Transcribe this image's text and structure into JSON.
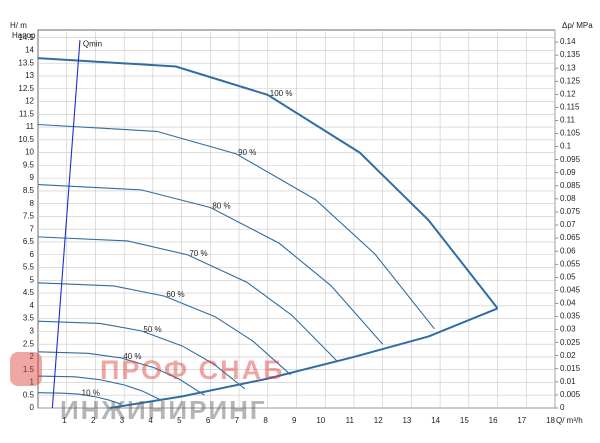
{
  "chart_data": {
    "type": "line",
    "y_label": "H/ m",
    "y_sublabel": "Напор",
    "y2_label": "Δp/ MPa",
    "x_label": "Q/ m³/h",
    "annotations": [
      "ПРОФ СНАБ",
      "ИНЖИНИРИНГ"
    ],
    "grid": true,
    "xlim": [
      0,
      18
    ],
    "xticks": [
      1,
      2,
      3,
      4,
      5,
      6,
      7,
      8,
      9,
      10,
      11,
      12,
      13,
      14,
      15,
      16,
      17,
      18
    ],
    "ylim": [
      0,
      14.8
    ],
    "yticks": [
      0,
      0.5,
      1,
      1.5,
      2,
      2.5,
      3,
      3.5,
      4,
      4.5,
      5,
      5.5,
      6,
      6.5,
      7,
      7.5,
      8,
      8.5,
      9,
      9.5,
      10,
      10.5,
      11,
      11.5,
      12,
      12.5,
      13,
      13.5,
      14,
      14.5
    ],
    "y2lim": [
      0,
      0.1446
    ],
    "y2ticks": [
      0,
      0.005,
      0.01,
      0.015,
      0.02,
      0.025,
      0.03,
      0.035,
      0.04,
      0.045,
      0.05,
      0.055,
      0.06,
      0.065,
      0.07,
      0.075,
      0.08,
      0.085,
      0.09,
      0.095,
      0.1,
      0.105,
      0.11,
      0.115,
      0.12,
      0.125,
      0.13,
      0.135,
      0.14
    ],
    "series": [
      {
        "name": "100 %",
        "color": "#2f6da3",
        "x": [
          0,
          4.8,
          8,
          11.2,
          13.6,
          16
        ],
        "values": [
          13.7,
          13.37,
          12.26,
          10.0,
          7.35,
          3.9
        ]
      },
      {
        "name": "90 %",
        "color": "#2f6da3",
        "x": [
          0,
          4.14,
          6.9,
          9.66,
          11.73,
          13.8
        ],
        "values": [
          11.1,
          10.83,
          9.95,
          8.16,
          6.03,
          3.1
        ]
      },
      {
        "name": "80 %",
        "color": "#2f6da3",
        "x": [
          0,
          3.6,
          6,
          8.4,
          10.2,
          12
        ],
        "values": [
          8.75,
          8.54,
          7.85,
          6.45,
          4.79,
          2.5
        ]
      },
      {
        "name": "70 %",
        "color": "#2f6da3",
        "x": [
          0,
          3.12,
          5.2,
          7.28,
          8.84,
          10.4
        ],
        "values": [
          6.7,
          6.54,
          6.0,
          4.92,
          3.63,
          1.85
        ]
      },
      {
        "name": "60 %",
        "color": "#2f6da3",
        "x": [
          0,
          2.64,
          4.4,
          6.16,
          7.48,
          8.8
        ],
        "values": [
          4.9,
          4.78,
          4.38,
          3.58,
          2.62,
          1.3
        ]
      },
      {
        "name": "50 %",
        "color": "#2f6da3",
        "x": [
          0,
          2.16,
          3.6,
          5.04,
          6.12,
          7.2
        ],
        "values": [
          3.4,
          3.31,
          3.02,
          2.42,
          1.72,
          0.75
        ]
      },
      {
        "name": "40 %",
        "color": "#2f6da3",
        "x": [
          0,
          1.74,
          2.9,
          4.06,
          4.93,
          5.8
        ],
        "values": [
          2.2,
          2.14,
          1.96,
          1.57,
          1.12,
          0.5
        ]
      },
      {
        "color": "#2f6da3",
        "x": [
          0,
          1.29,
          2.15,
          3.01,
          3.66,
          4.3
        ],
        "values": [
          1.25,
          1.22,
          1.11,
          0.9,
          0.65,
          0.3
        ]
      },
      {
        "name": "10 %",
        "color": "#2f6da3",
        "x": [
          0,
          0.87,
          1.45,
          2.03,
          2.47,
          2.9
        ],
        "values": [
          0.6,
          0.58,
          0.54,
          0.43,
          0.31,
          0.15
        ]
      },
      {
        "color": "#2f6da3",
        "x": [
          2.5,
          5,
          8,
          11,
          13.6,
          16
        ],
        "values": [
          0,
          0.45,
          1.15,
          2.0,
          2.8,
          3.9
        ]
      },
      {
        "name": "Qmin",
        "color": "#1c2fd0",
        "x": [
          0.5,
          1.46
        ],
        "values": [
          0,
          14.4
        ]
      }
    ]
  }
}
